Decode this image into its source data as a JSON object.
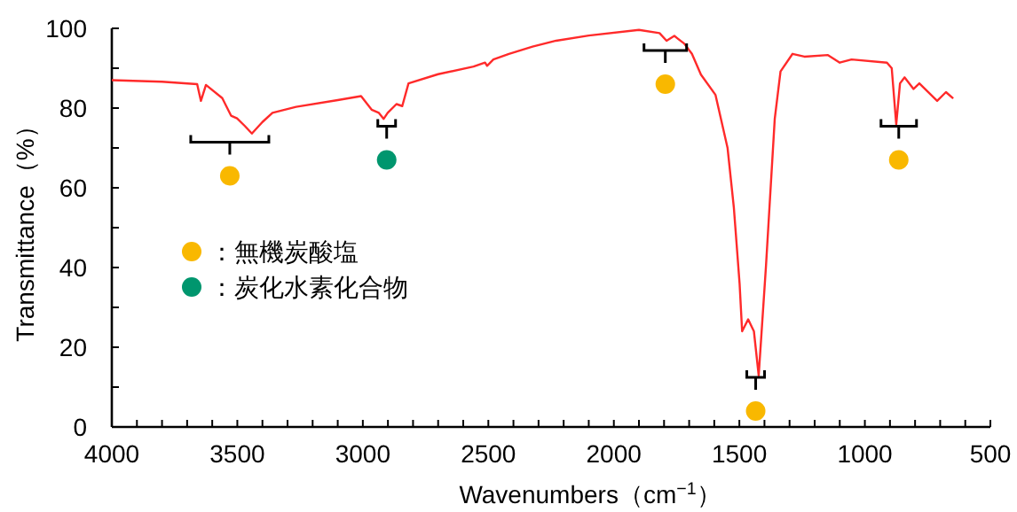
{
  "chart_data": {
    "type": "line",
    "xlabel": "Wavenumbers（cm$^{−1}$）",
    "ylabel": "Transmittance（%）",
    "xlim": [
      4000,
      500
    ],
    "ylim": [
      0,
      100
    ],
    "grid": false,
    "legend": "left",
    "xticks": [
      4000,
      {
        "value": 3900,
        "label": null
      },
      {
        "value": 3800,
        "label": null
      },
      {
        "value": 3700,
        "label": null
      },
      {
        "value": 3600,
        "label": null
      },
      3500,
      {
        "value": 3400,
        "label": null
      },
      {
        "value": 3300,
        "label": null
      },
      {
        "value": 3200,
        "label": null
      },
      {
        "value": 3100,
        "label": null
      },
      3000,
      {
        "value": 2900,
        "label": null
      },
      {
        "value": 2800,
        "label": null
      },
      {
        "value": 2700,
        "label": null
      },
      {
        "value": 2600,
        "label": null
      },
      2500,
      {
        "value": 2400,
        "label": null
      },
      {
        "value": 2300,
        "label": null
      },
      {
        "value": 2200,
        "label": null
      },
      {
        "value": 2100,
        "label": null
      },
      2000,
      {
        "value": 1900,
        "label": null
      },
      {
        "value": 1800,
        "label": null
      },
      {
        "value": 1700,
        "label": null
      },
      {
        "value": 1600,
        "label": null
      },
      1500,
      {
        "value": 1400,
        "label": null
      },
      {
        "value": 1300,
        "label": null
      },
      {
        "value": 1200,
        "label": null
      },
      {
        "value": 1100,
        "label": null
      },
      1000,
      {
        "value": 900,
        "label": null
      },
      {
        "value": 800,
        "label": null
      },
      {
        "value": 700,
        "label": null
      },
      {
        "value": 600,
        "label": null
      },
      500
    ],
    "yticks": [
      0,
      {
        "value": 10,
        "label": null
      },
      20,
      {
        "value": 30,
        "label": null
      },
      40,
      {
        "value": 50,
        "label": null
      },
      60,
      {
        "value": 70,
        "label": null
      },
      80,
      {
        "value": 90,
        "label": null
      },
      100
    ],
    "series": [
      {
        "color": "#ff2a2a",
        "x": [
          4000,
          3800,
          3660,
          3645,
          3625,
          3560,
          3525,
          3501,
          3470,
          3442,
          3400,
          3360,
          3266,
          3100,
          3007,
          2965,
          2936,
          2917,
          2901,
          2866,
          2843,
          2818,
          2700,
          2559,
          2513,
          2505,
          2480,
          2418,
          2324,
          2230,
          2100,
          1900,
          1818,
          1790,
          1759,
          1720,
          1689,
          1653,
          1595,
          1547,
          1522,
          1499,
          1489,
          1465,
          1442,
          1423,
          1394,
          1359,
          1336,
          1288,
          1241,
          1147,
          1100,
          1053,
          912,
          893,
          875,
          860,
          842,
          806,
          783,
          712,
          677,
          648
        ],
        "values": [
          87,
          86.6,
          86,
          81.8,
          85.8,
          82.5,
          78.1,
          77.4,
          75.5,
          73.6,
          76.5,
          78.8,
          80.3,
          82,
          83,
          79.6,
          78.8,
          77.3,
          78.8,
          81,
          80.5,
          86.2,
          88.5,
          90.4,
          91.4,
          90.6,
          92.2,
          93.6,
          95.4,
          96.9,
          98.2,
          99.6,
          98.8,
          96.9,
          98.1,
          96.2,
          93.6,
          88.4,
          83.3,
          70,
          55.1,
          35.9,
          24,
          27,
          24,
          12.9,
          40.3,
          77.3,
          89.2,
          93.6,
          92.9,
          93.3,
          91.4,
          92.2,
          91.4,
          90,
          75.9,
          86.2,
          87.7,
          84.8,
          86.2,
          81.8,
          84,
          82.4
        ]
      },
      {
        "type": "scatter",
        "name": "：無機炭酸塩",
        "color": "#f9b800",
        "marker": "circle",
        "x": [
          3530,
          1795,
          1435,
          865
        ],
        "values": [
          63,
          86,
          4,
          67
        ]
      },
      {
        "type": "scatter",
        "name": "：炭化水素化合物",
        "color": "#00966e",
        "marker": "circle",
        "x": [
          2905
        ],
        "values": [
          67
        ]
      }
    ]
  }
}
